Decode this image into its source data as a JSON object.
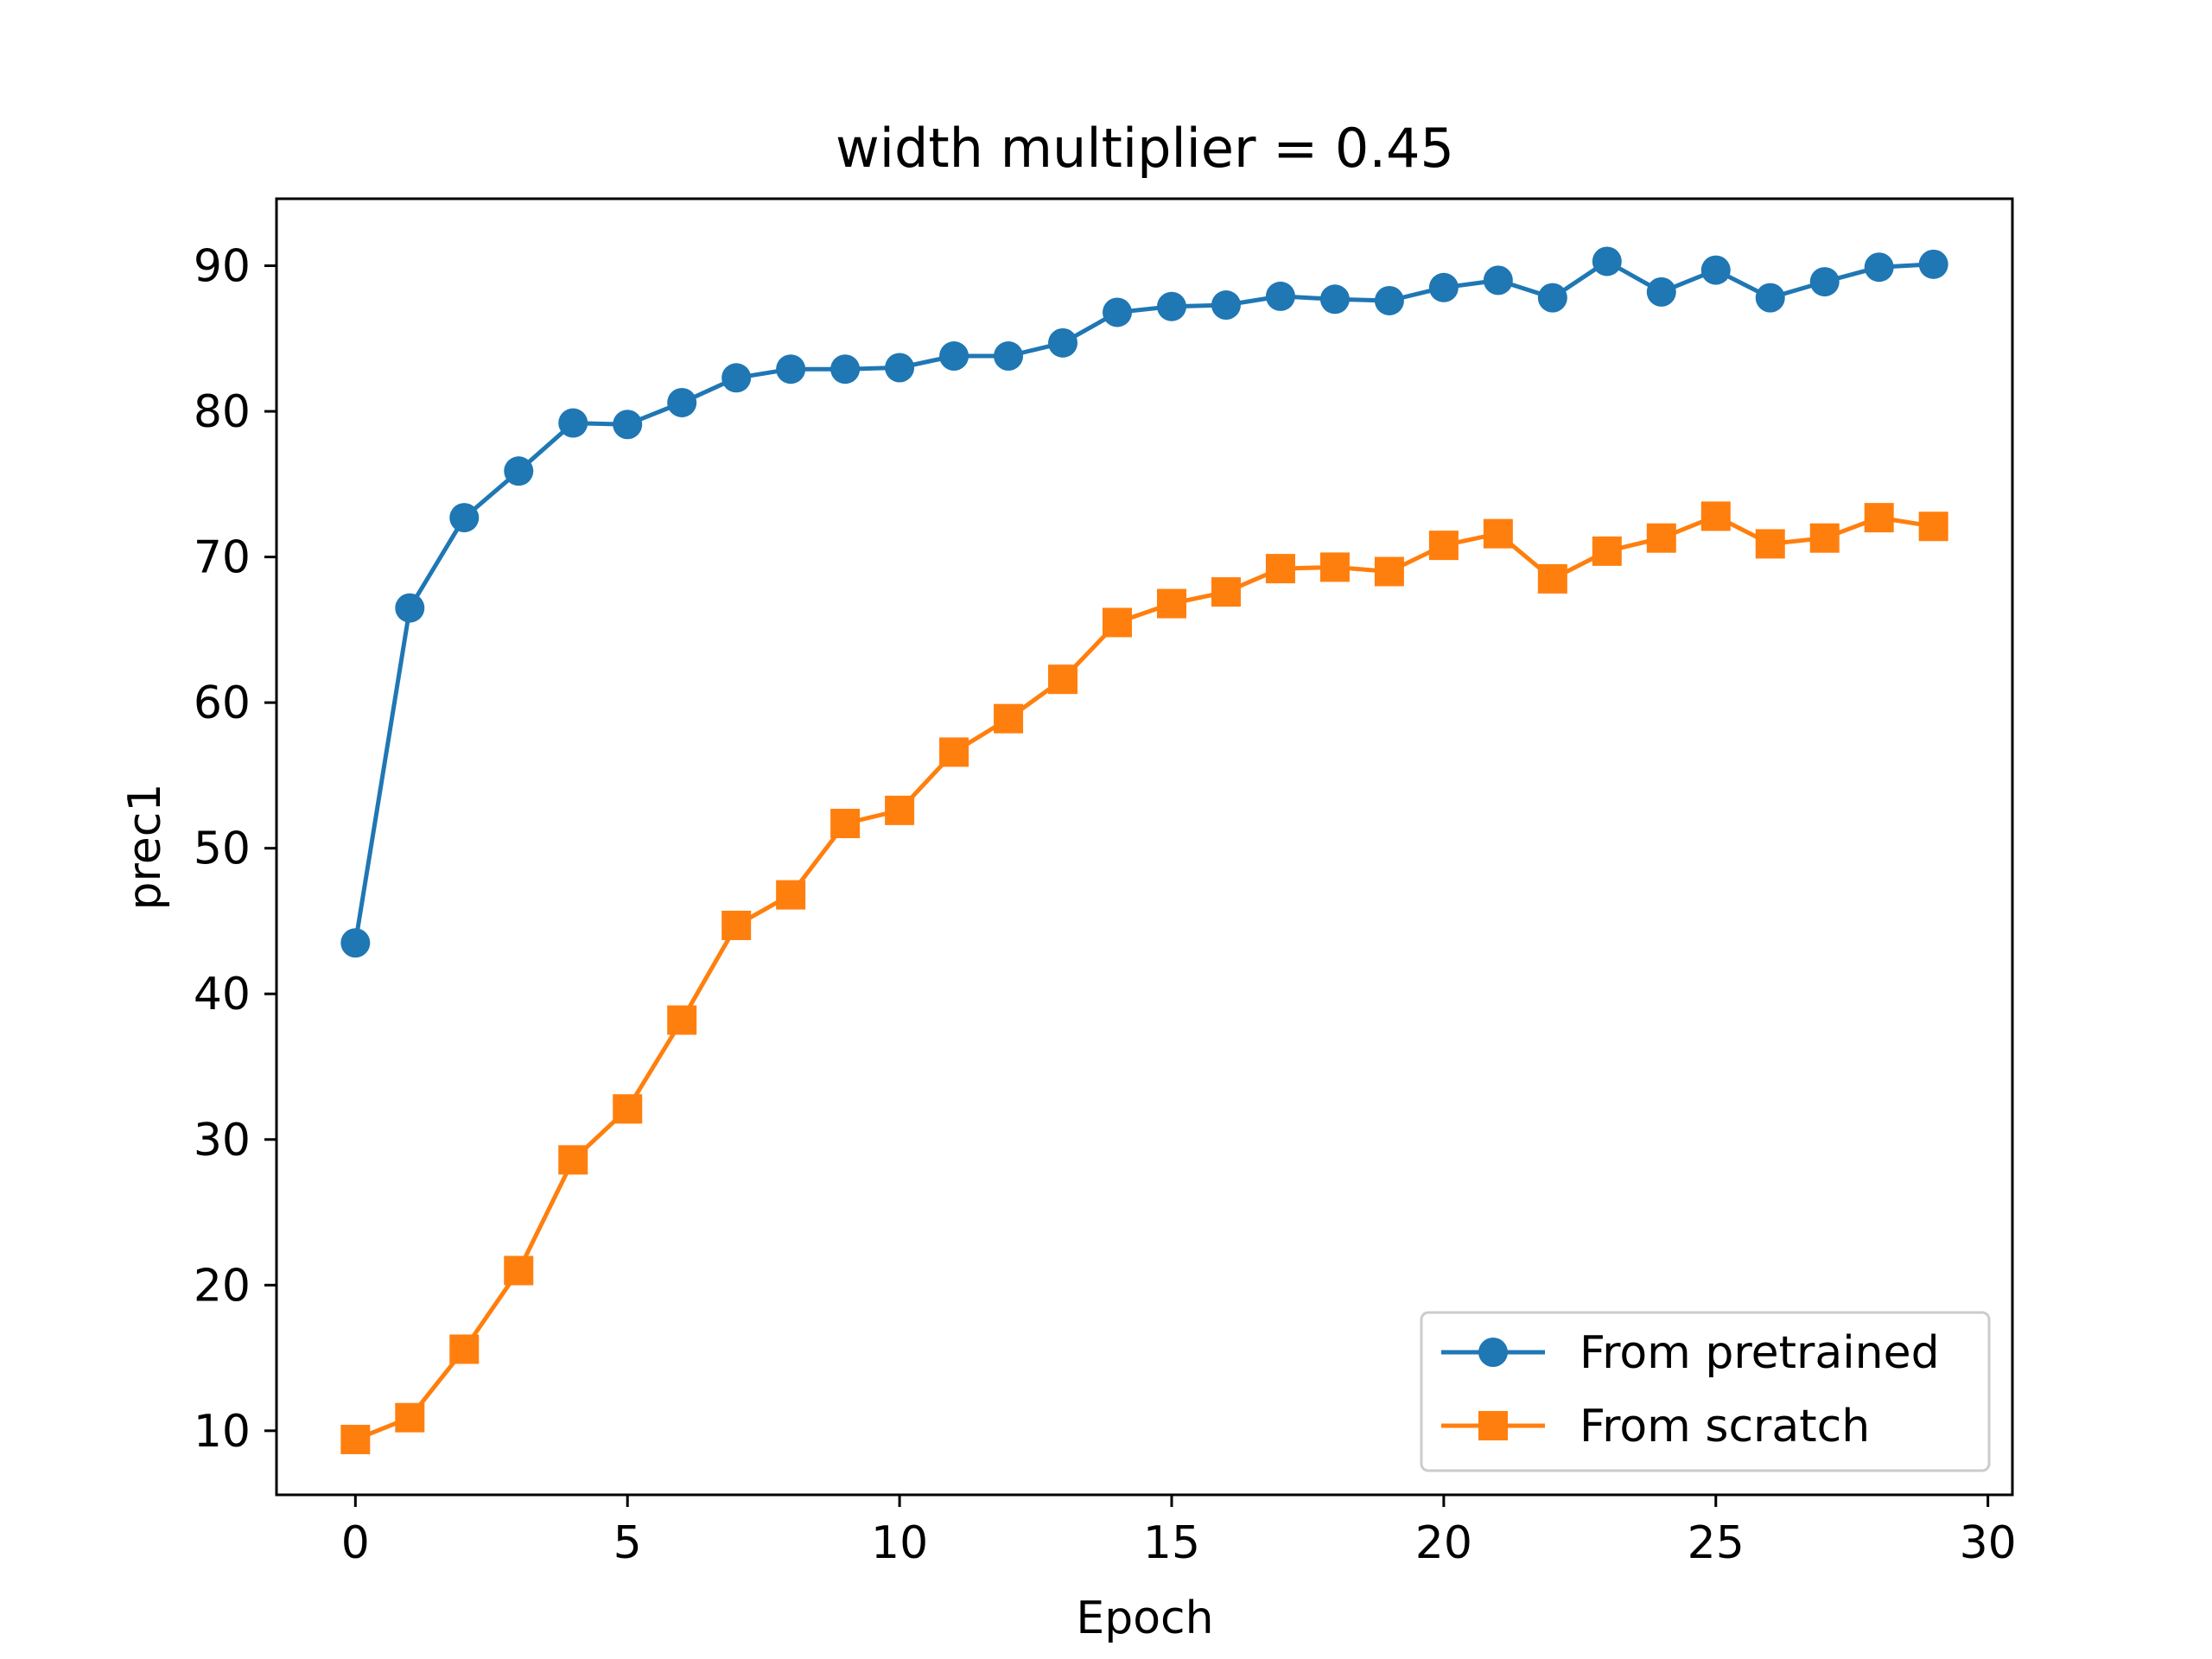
{
  "chart_data": {
    "type": "line",
    "title": "width multiplier = 0.45",
    "xlabel": "Epoch",
    "ylabel": "prec1",
    "xlim": [
      -1.45,
      30.45
    ],
    "ylim": [
      5.6,
      94.6
    ],
    "xticks": [
      0,
      5,
      10,
      15,
      20,
      25,
      30
    ],
    "yticks": [
      10,
      20,
      30,
      40,
      50,
      60,
      70,
      80,
      90
    ],
    "grid": false,
    "legend_position": "lower-right",
    "x": [
      0,
      1,
      2,
      3,
      4,
      5,
      6,
      7,
      8,
      9,
      10,
      11,
      12,
      13,
      14,
      15,
      16,
      17,
      18,
      19,
      20,
      21,
      22,
      23,
      24,
      25,
      26,
      27,
      28,
      29
    ],
    "series": [
      {
        "name": "From pretrained",
        "color": "#1f77b4",
        "marker": "circle",
        "values": [
          43.5,
          66.5,
          72.7,
          75.9,
          79.2,
          79.1,
          80.6,
          82.3,
          82.9,
          82.9,
          83.0,
          83.8,
          83.8,
          84.7,
          86.8,
          87.2,
          87.3,
          87.9,
          87.7,
          87.6,
          88.5,
          89.0,
          87.8,
          90.3,
          88.2,
          89.7,
          87.8,
          88.9,
          89.9,
          90.1
        ]
      },
      {
        "name": "From scratch",
        "color": "#ff7f0e",
        "marker": "square",
        "values": [
          9.4,
          10.9,
          15.6,
          21.0,
          28.6,
          32.1,
          38.2,
          44.7,
          46.8,
          51.7,
          52.6,
          56.6,
          58.9,
          61.6,
          65.5,
          66.8,
          67.6,
          69.2,
          69.3,
          69.0,
          70.8,
          71.6,
          68.5,
          70.4,
          71.3,
          72.8,
          70.9,
          71.3,
          72.7,
          72.1
        ]
      }
    ]
  }
}
